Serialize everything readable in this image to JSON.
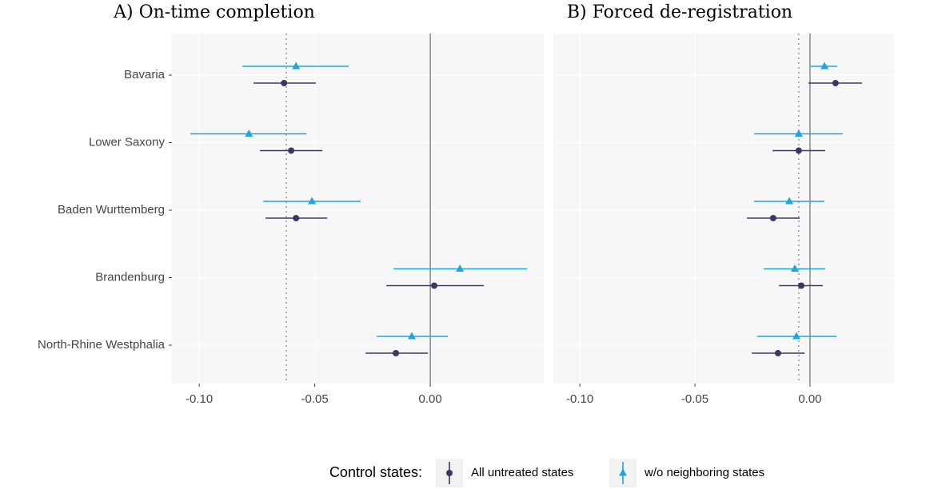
{
  "chart_data": [
    {
      "type": "forest",
      "title": "A) On-time completion",
      "categories": [
        "Bavaria",
        "Lower Saxony",
        "Baden Wurttemberg",
        "Brandenburg",
        "North-Rhine Westphalia"
      ],
      "legend_title": "Control states:",
      "series": [
        {
          "name": "All untreated states",
          "color": "#3b3868",
          "marker": "circle",
          "values": [
            -0.0633,
            -0.0602,
            -0.0581,
            0.0017,
            -0.0149
          ],
          "lower": [
            -0.0765,
            -0.0737,
            -0.0713,
            -0.019,
            -0.028
          ],
          "upper": [
            -0.0495,
            -0.0467,
            -0.0446,
            0.0232,
            -0.001
          ]
        },
        {
          "name": "w/o neighboring states",
          "color": "#1ca7d9",
          "marker": "triangle",
          "values": [
            -0.0581,
            -0.0785,
            -0.0512,
            0.0128,
            -0.008
          ],
          "lower": [
            -0.0813,
            -0.1038,
            -0.0723,
            -0.0159,
            -0.0232
          ],
          "upper": [
            -0.0353,
            -0.0536,
            -0.0301,
            0.0419,
            0.0076
          ]
        }
      ],
      "reference_line": -0.0623,
      "xlim": [
        -0.1118,
        0.0491
      ],
      "xticks": [
        {
          "value": -0.1,
          "label": "-0.10"
        },
        {
          "value": -0.05,
          "label": "-0.05"
        },
        {
          "value": 0,
          "label": "0.00"
        }
      ],
      "grid": true
    },
    {
      "type": "forest",
      "title": "B) Forced de-registration",
      "series": [
        {
          "color": "#3b3868",
          "marker": "circle",
          "values": [
            0.0111,
            -0.0049,
            -0.016,
            -0.0038,
            -0.0139
          ],
          "lower": [
            -0.0007,
            -0.0163,
            -0.0274,
            -0.0135,
            -0.0253
          ],
          "upper": [
            0.0226,
            0.0066,
            -0.0045,
            0.0056,
            -0.0024
          ]
        },
        {
          "color": "#1ca7d9",
          "marker": "triangle",
          "values": [
            0.0063,
            -0.0049,
            -0.009,
            -0.0066,
            -0.0059
          ],
          "lower": [
            0.0003,
            -0.0243,
            -0.0243,
            -0.0201,
            -0.0229
          ],
          "upper": [
            0.0118,
            0.0142,
            0.0063,
            0.0066,
            0.0115
          ]
        }
      ],
      "reference_line": -0.0049,
      "xlim": [
        -0.1115,
        0.0365
      ],
      "xticks": [
        {
          "value": -0.1,
          "label": "-0.10"
        },
        {
          "value": -0.05,
          "label": "-0.05"
        },
        {
          "value": 0,
          "label": "0.00"
        }
      ],
      "grid": true
    }
  ]
}
